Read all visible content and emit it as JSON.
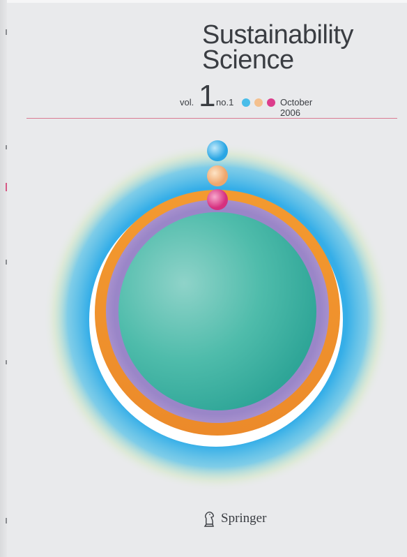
{
  "cover": {
    "title_line1": "Sustainability",
    "title_line2": "Science",
    "vol_label": "vol.",
    "vol_number": "1",
    "issue_label": "no.1",
    "date": "October 2006",
    "publisher": "Springer"
  },
  "colors": {
    "background": "#e9eaec",
    "text": "#3a3d42",
    "rule": "#d97a92",
    "dot_blue": "#49bde9",
    "dot_peach": "#f4c08e",
    "dot_pink": "#dc3d8c",
    "halo_blue": "#2fa8e6",
    "ring_orange": "#f0922c",
    "ring_violet": "#9a86c8",
    "globe_teal": "#47b7a6"
  },
  "icons": {
    "publisher_logo": "springer-knight-icon",
    "issue_dots": [
      "blue-dot-icon",
      "peach-dot-icon",
      "pink-dot-icon"
    ]
  }
}
